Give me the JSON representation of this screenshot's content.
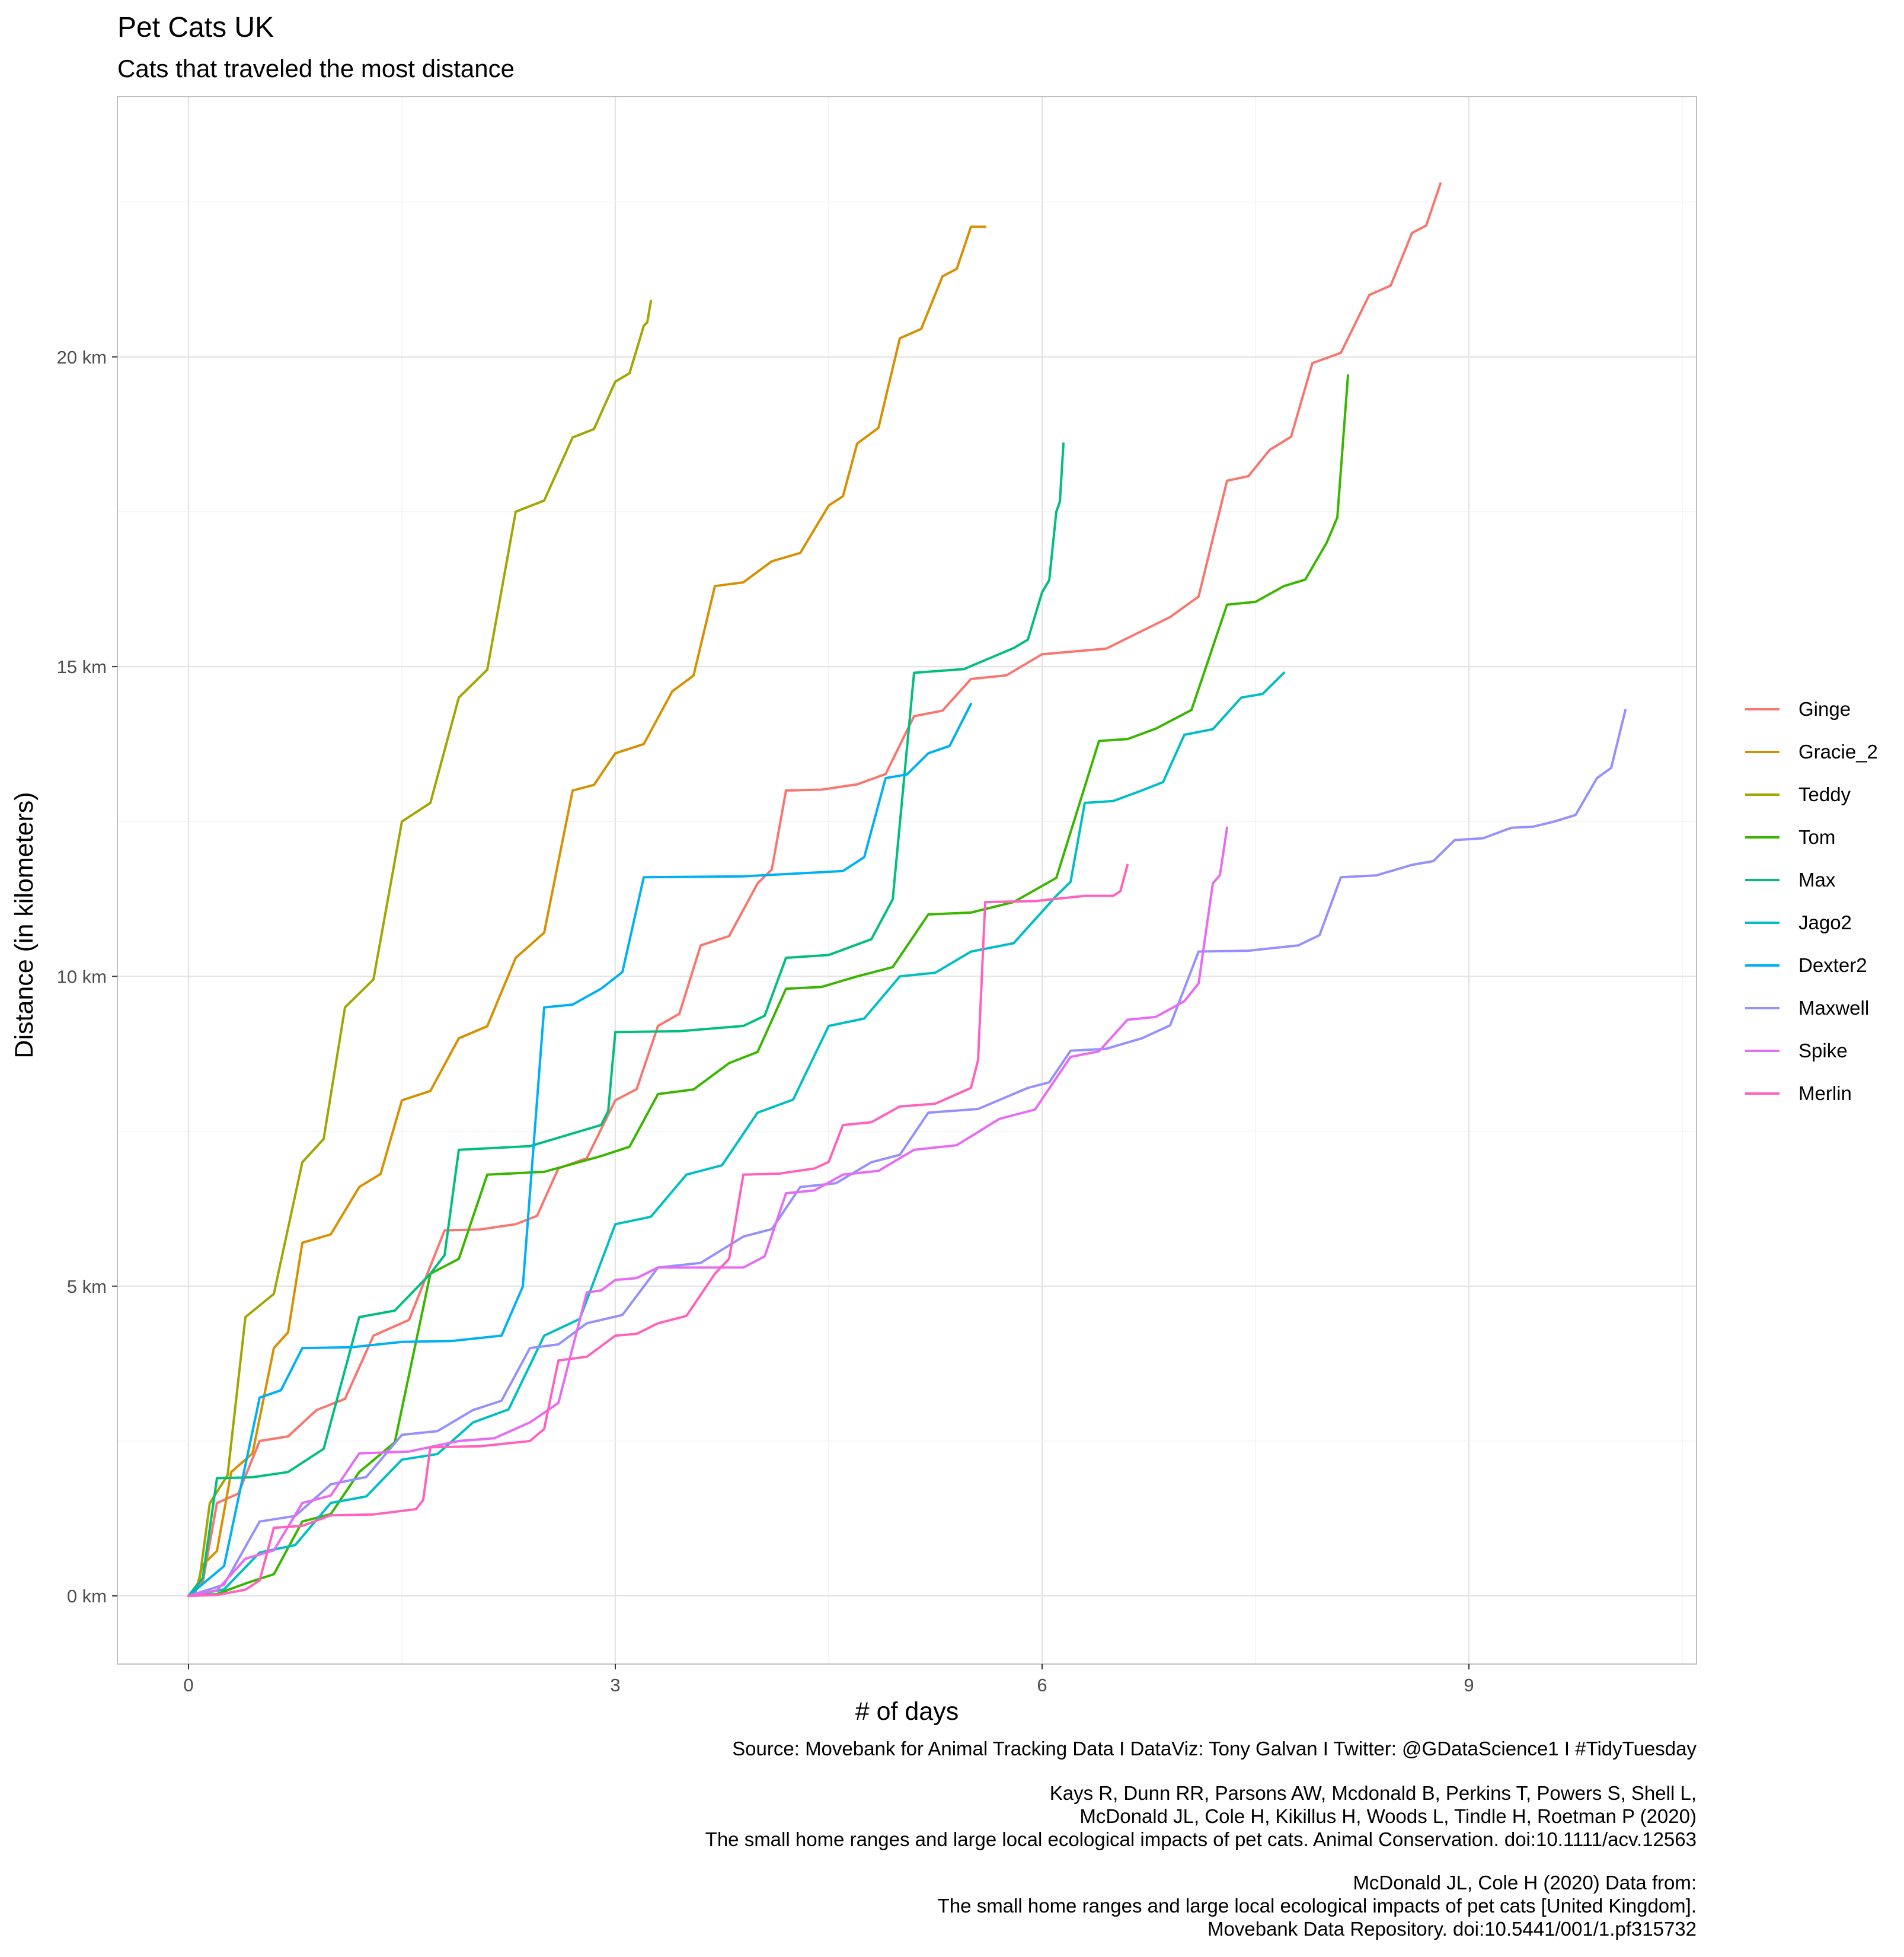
{
  "chart_data": {
    "type": "line",
    "title": "Pet Cats UK",
    "subtitle": "Cats that traveled the most distance",
    "xlabel": "# of days",
    "ylabel": "Distance (in kilometers)",
    "xlim": [
      -0.5,
      10.6
    ],
    "ylim": [
      -1.1,
      24.2
    ],
    "x_ticks": [
      0,
      3,
      6,
      9
    ],
    "x_tick_labels": [
      "0",
      "3",
      "6",
      "9"
    ],
    "y_ticks": [
      0,
      5,
      10,
      15,
      20
    ],
    "y_tick_labels": [
      "0 km",
      "5 km",
      "10 km",
      "15 km",
      "20 km"
    ],
    "grid": true,
    "legend_position": "right",
    "series": [
      {
        "name": "Ginge",
        "color": "#F8766D",
        "x": [
          0,
          0.2,
          0.5,
          0.9,
          1.3,
          1.8,
          2.3,
          2.6,
          3.0,
          3.3,
          3.6,
          4.0,
          4.2,
          4.7,
          5.1,
          5.5,
          6.0,
          6.9,
          7.3,
          7.6,
          7.9,
          8.3,
          8.6,
          8.8
        ],
        "y": [
          0,
          1.5,
          2.5,
          3.0,
          4.2,
          5.9,
          6.0,
          6.9,
          8.0,
          9.2,
          10.5,
          11.5,
          13.0,
          13.1,
          14.2,
          14.8,
          15.2,
          15.8,
          18.0,
          18.5,
          19.9,
          21.0,
          22.0,
          22.8
        ]
      },
      {
        "name": "Gracie_2",
        "color": "#D89000",
        "x": [
          0,
          0.1,
          0.3,
          0.6,
          0.8,
          1.2,
          1.5,
          1.9,
          2.3,
          2.7,
          3.0,
          3.4,
          3.7,
          4.1,
          4.5,
          4.7,
          5.0,
          5.3,
          5.5,
          5.6
        ],
        "y": [
          0,
          0.5,
          2.0,
          4.0,
          5.7,
          6.6,
          8.0,
          9.0,
          10.3,
          13.0,
          13.6,
          14.6,
          16.3,
          16.7,
          17.6,
          18.6,
          20.3,
          21.3,
          22.1,
          22.1
        ],
        "legend_label": "Gracie_2"
      },
      {
        "name": "Teddy",
        "color": "#A3A500",
        "x": [
          0,
          0.15,
          0.4,
          0.8,
          1.1,
          1.5,
          1.9,
          2.3,
          2.7,
          3.0,
          3.2,
          3.25
        ],
        "y": [
          0,
          1.5,
          4.5,
          7.0,
          9.5,
          12.5,
          14.5,
          17.5,
          18.7,
          19.6,
          20.5,
          20.9
        ]
      },
      {
        "name": "Tom",
        "color": "#39B600",
        "x": [
          0,
          0.4,
          0.8,
          1.2,
          1.7,
          2.1,
          2.9,
          3.3,
          3.8,
          4.2,
          4.7,
          5.2,
          5.8,
          6.4,
          6.8,
          7.3,
          7.7,
          8.0,
          8.15
        ],
        "y": [
          0,
          0.2,
          1.2,
          2.0,
          5.2,
          6.8,
          7.1,
          8.1,
          8.6,
          9.8,
          10.0,
          11.0,
          11.2,
          13.8,
          14.0,
          16.0,
          16.3,
          17.0,
          19.7
        ]
      },
      {
        "name": "Max",
        "color": "#00BF7D",
        "x": [
          0,
          0.2,
          0.7,
          1.2,
          1.7,
          1.9,
          2.9,
          3.0,
          3.9,
          4.2,
          4.8,
          5.1,
          5.8,
          6.0,
          6.1,
          6.15
        ],
        "y": [
          0,
          1.9,
          2.0,
          4.5,
          5.2,
          7.2,
          7.6,
          9.1,
          9.2,
          10.3,
          10.6,
          14.9,
          15.3,
          16.2,
          17.5,
          18.6
        ]
      },
      {
        "name": "Jago2",
        "color": "#00BFC4",
        "x": [
          0,
          0.5,
          1.0,
          1.5,
          2.0,
          2.5,
          3.0,
          3.5,
          4.0,
          4.5,
          5.0,
          5.5,
          6.1,
          6.3,
          6.7,
          7.0,
          7.4,
          7.7
        ],
        "y": [
          0,
          0.7,
          1.5,
          2.2,
          2.8,
          4.2,
          6.0,
          6.8,
          7.8,
          9.2,
          10.0,
          10.4,
          11.3,
          12.8,
          13.0,
          13.9,
          14.5,
          14.9
        ]
      },
      {
        "name": "Dexter2",
        "color": "#00B0F6",
        "x": [
          0,
          0.5,
          0.8,
          1.5,
          2.2,
          2.5,
          2.9,
          3.2,
          4.6,
          4.9,
          5.2,
          5.5
        ],
        "y": [
          0,
          3.2,
          4.0,
          4.1,
          4.2,
          9.5,
          9.8,
          11.6,
          11.7,
          13.2,
          13.6,
          14.4
        ]
      },
      {
        "name": "Maxwell",
        "color": "#9590FF",
        "x": [
          0,
          0.5,
          1.0,
          1.5,
          2.0,
          2.4,
          2.8,
          3.3,
          3.9,
          4.3,
          4.8,
          5.2,
          5.9,
          6.2,
          6.7,
          7.1,
          7.8,
          8.1,
          8.6,
          8.9,
          9.3,
          9.6,
          9.9,
          10.1
        ],
        "y": [
          0,
          1.2,
          1.8,
          2.6,
          3.0,
          4.0,
          4.4,
          5.3,
          5.8,
          6.6,
          7.0,
          7.8,
          8.2,
          8.8,
          9.0,
          10.4,
          10.5,
          11.6,
          11.8,
          12.2,
          12.4,
          12.5,
          13.2,
          14.3
        ]
      },
      {
        "name": "Spike",
        "color": "#E76BF3",
        "x": [
          0,
          0.4,
          0.8,
          1.2,
          1.9,
          2.4,
          2.8,
          3.0,
          3.3,
          3.9,
          4.2,
          4.6,
          5.1,
          5.7,
          6.2,
          6.6,
          7.0,
          7.2,
          7.3
        ],
        "y": [
          0,
          0.6,
          1.5,
          2.3,
          2.5,
          2.8,
          4.9,
          5.1,
          5.3,
          5.3,
          6.5,
          6.8,
          7.2,
          7.7,
          8.7,
          9.3,
          9.6,
          11.5,
          12.4
        ]
      },
      {
        "name": "Merlin",
        "color": "#FF62BC",
        "x": [
          0,
          0.4,
          0.6,
          1.0,
          1.6,
          1.7,
          2.4,
          2.6,
          3.0,
          3.3,
          3.7,
          3.9,
          4.4,
          4.6,
          5.0,
          5.5,
          5.6,
          6.3,
          6.5,
          6.6
        ],
        "y": [
          0,
          0.1,
          1.1,
          1.3,
          1.4,
          2.4,
          2.5,
          3.8,
          4.2,
          4.4,
          5.2,
          6.8,
          6.9,
          7.6,
          7.9,
          8.2,
          11.2,
          11.3,
          11.3,
          11.8
        ]
      }
    ]
  },
  "legend_items": [
    "Ginge",
    "Gracie_2",
    "Teddy",
    "Tom",
    "Max",
    "Jago2",
    "Dexter2",
    "Maxwell",
    "Spike",
    "Merlin"
  ],
  "caption": {
    "line1": "Source: Movebank for Animal Tracking Data   I  DataViz: Tony Galvan  I  Twitter: @GDataScience1  I  #TidyTuesday",
    "line2": "Kays R, Dunn RR, Parsons AW, Mcdonald B, Perkins T, Powers S, Shell L,",
    "line3": "McDonald JL, Cole H, Kikillus H, Woods L, Tindle H, Roetman P (2020)",
    "line4": "The small home ranges and large local ecological impacts of pet cats. Animal Conservation. doi:10.1111/acv.12563",
    "line5": "McDonald JL, Cole H (2020) Data from:",
    "line6": "The small home ranges and large local ecological impacts of pet cats [United Kingdom].",
    "line7": "Movebank Data Repository. doi:10.5441/001/1.pf315732"
  },
  "colors": {
    "panel_border": "#bfbfbf",
    "grid_major": "#e3e3e3",
    "grid_minor": "#f1f1f1"
  }
}
